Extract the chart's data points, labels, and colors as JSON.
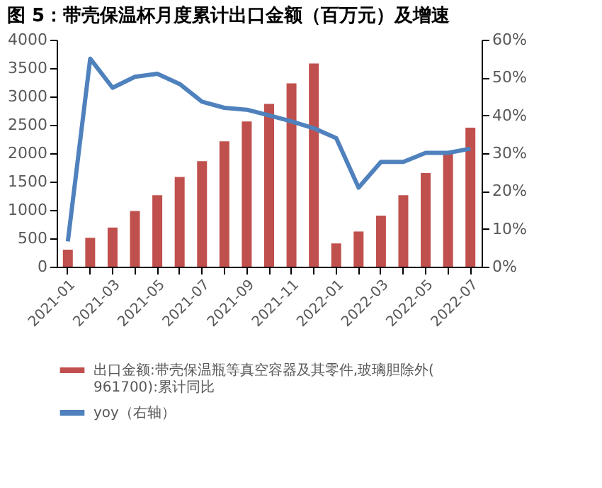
{
  "chart_data": {
    "type": "bar",
    "title": "图 5：带壳保温杯月度累计出口金额（百万元）及增速",
    "categories": [
      "2021-01",
      null,
      "2021-03",
      null,
      "2021-05",
      null,
      "2021-07",
      null,
      "2021-09",
      null,
      "2021-11",
      null,
      "2022-01",
      null,
      "2022-03",
      null,
      "2022-05",
      null,
      "2022-07"
    ],
    "series": [
      {
        "name": "出口金额:带壳保温瓶等真空容器及其零件,玻璃胆除外(961700):累计同比",
        "color": "#c0504d",
        "values": [
          300,
          510,
          690,
          980,
          1260,
          1580,
          1860,
          2210,
          2560,
          2870,
          3230,
          3580,
          410,
          620,
          900,
          1260,
          1650,
          2000,
          2450
        ]
      },
      {
        "name": "yoy（右轴）",
        "type": "line",
        "axis": "y2",
        "color": "#4f81bd",
        "values": [
          6.7,
          55,
          47.3,
          50.2,
          51,
          48.3,
          43.6,
          42,
          41.5,
          40,
          38.4,
          36.6,
          34,
          20.9,
          27.7,
          27.7,
          30.1,
          30.1,
          31.2
        ]
      }
    ],
    "ylim": [
      0,
      4000
    ],
    "yticks": [
      0,
      500,
      1000,
      1500,
      2000,
      2500,
      3000,
      3500,
      4000
    ],
    "y2lim": [
      0,
      60
    ],
    "y2ticks": [
      {
        "value": 0,
        "label": "0%"
      },
      {
        "value": 10,
        "label": "10%"
      },
      {
        "value": 20,
        "label": "20%"
      },
      {
        "value": 30,
        "label": "30%"
      },
      {
        "value": 40,
        "label": "40%"
      },
      {
        "value": 50,
        "label": "50%"
      },
      {
        "value": 60,
        "label": "60%"
      }
    ],
    "grid": false,
    "legend": "bottom",
    "marker": "none",
    "line_style": "solid"
  }
}
